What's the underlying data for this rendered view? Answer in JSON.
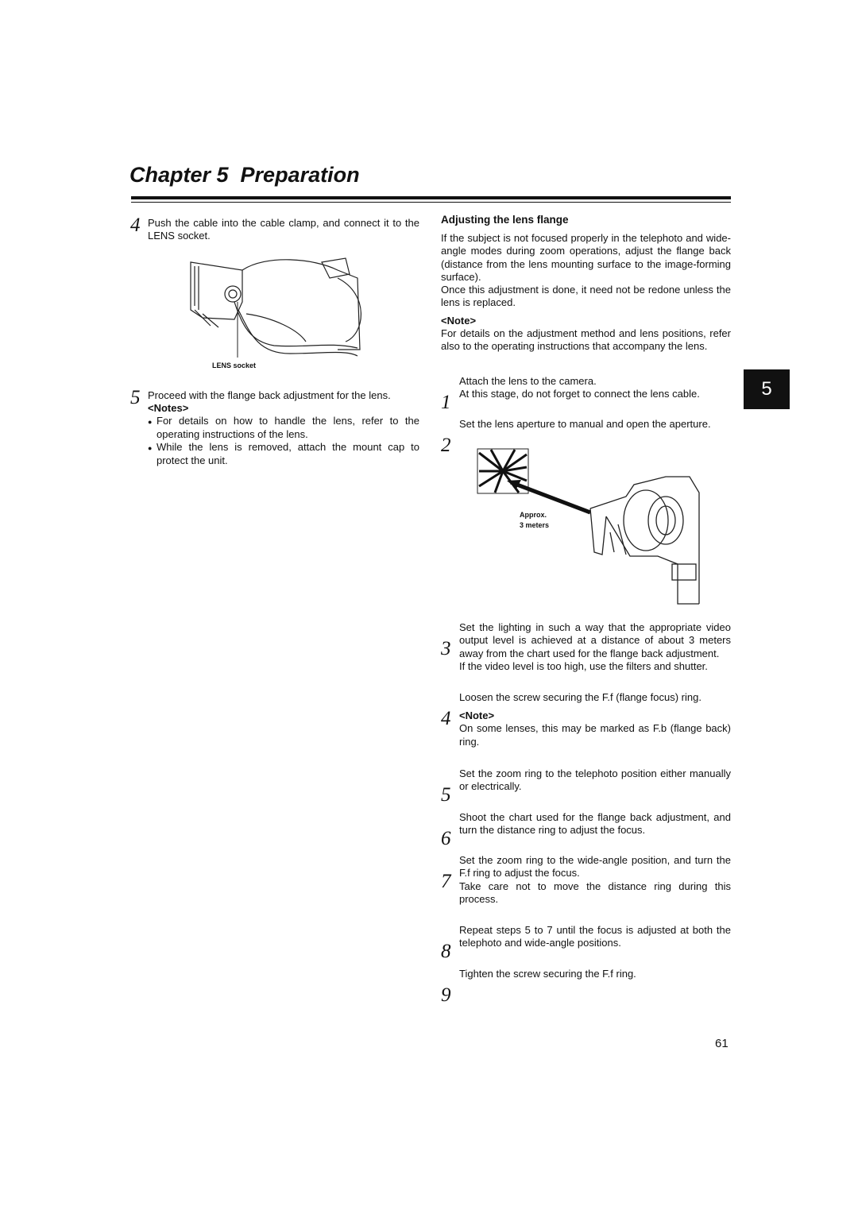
{
  "header": {
    "title": "Chapter 5  Preparation"
  },
  "left": {
    "steps": [
      {
        "number": "4",
        "text": "Push the cable into the cable clamp, and connect it to the LENS socket."
      },
      {
        "number": "5",
        "text": "Proceed with the flange back adjustment for the lens.",
        "notes_heading": "<Notes>",
        "notes": [
          "For details on how to handle the lens, refer to the operating instructions of the lens.",
          "While the lens is removed, attach the mount cap to protect the unit."
        ]
      }
    ],
    "figure": {
      "label": "LENS socket"
    }
  },
  "right": {
    "heading": "Adjusting the lens flange",
    "paragraphs": [
      "If the subject is not focused properly in the telephoto and wide-angle modes during zoom operations, adjust the flange back (distance from the lens mounting surface to the image-forming surface).",
      "Once this adjustment is done, it need not be redone unless the lens is replaced."
    ],
    "note_heading": "<Note>",
    "note": "For details on the adjustment method and lens positions, refer also to the operating instructions that accompany the lens.",
    "figure": {
      "labels": [
        "Approx.",
        "3 meters"
      ]
    },
    "steps": [
      {
        "number": "1",
        "paragraphs": [
          "Attach the lens to the camera.",
          "At this stage, do not forget to connect the lens cable."
        ]
      },
      {
        "number": "2",
        "paragraphs": [
          "Set the lens aperture to manual and open the aperture."
        ]
      },
      {
        "number": "3",
        "paragraphs": [
          "Set the lighting in such a way that the appropriate video output level is achieved at a distance of about 3 meters away from the chart used for the flange back adjustment.",
          "If the video level is too high, use the filters and shutter."
        ]
      },
      {
        "number": "4",
        "paragraphs": [
          "Loosen the screw securing the F.f (flange focus) ring."
        ],
        "note_heading": "<Note>",
        "note": "On some lenses, this may be marked as F.b (flange back) ring."
      },
      {
        "number": "5",
        "paragraphs": [
          "Set the zoom ring to the telephoto position either manually or electrically."
        ]
      },
      {
        "number": "6",
        "paragraphs": [
          "Shoot the chart used for the flange back adjustment, and turn the distance ring to adjust the focus."
        ]
      },
      {
        "number": "7",
        "paragraphs": [
          "Set the zoom ring to the wide-angle position, and turn the F.f ring to adjust the focus.",
          "Take care not to move the distance ring during this process."
        ]
      },
      {
        "number": "8",
        "paragraphs": [
          "Repeat steps 5 to 7 until the focus is adjusted at both the telephoto and wide-angle positions."
        ]
      },
      {
        "number": "9",
        "paragraphs": [
          "Tighten the screw securing the F.f ring."
        ]
      }
    ]
  },
  "chapter_tab": "5",
  "page_number": "61"
}
